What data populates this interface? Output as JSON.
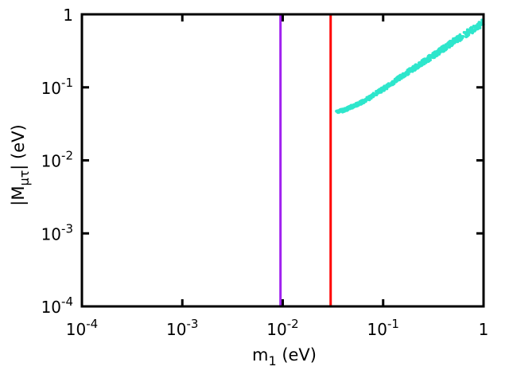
{
  "chart_data": {
    "type": "scatter",
    "title": "",
    "x_scale": "log",
    "y_scale": "log",
    "xlim": [
      0.0001,
      1
    ],
    "ylim": [
      0.0001,
      1
    ],
    "xlabel": {
      "base": "m",
      "sub": "1",
      "unit": " (eV)"
    },
    "ylabel": {
      "prefix": "|M",
      "sub": "μτ",
      "suffix": "| (eV)"
    },
    "x_ticks": [
      {
        "value": 0.0001,
        "base": "10",
        "exp": "-4"
      },
      {
        "value": 0.001,
        "base": "10",
        "exp": "-3"
      },
      {
        "value": 0.01,
        "base": "10",
        "exp": "-2"
      },
      {
        "value": 0.1,
        "base": "10",
        "exp": "-1"
      },
      {
        "value": 1,
        "base": "1",
        "exp": ""
      }
    ],
    "y_ticks": [
      {
        "value": 0.0001,
        "base": "10",
        "exp": "-4"
      },
      {
        "value": 0.001,
        "base": "10",
        "exp": "-3"
      },
      {
        "value": 0.01,
        "base": "10",
        "exp": "-2"
      },
      {
        "value": 0.1,
        "base": "10",
        "exp": "-1"
      },
      {
        "value": 1,
        "base": "1",
        "exp": ""
      }
    ],
    "grid": false,
    "vertical_lines": [
      {
        "x": 0.0095,
        "color": "#a020f0"
      },
      {
        "x": 0.03,
        "color": "#ff0000"
      }
    ],
    "series": [
      {
        "color": "#2ee6cc",
        "marker": "dot",
        "band": {
          "x_range": [
            0.034,
            1.0
          ],
          "points_xy": [
            [
              0.034,
              0.047
            ],
            [
              0.04,
              0.048
            ],
            [
              0.05,
              0.055
            ],
            [
              0.06,
              0.062
            ],
            [
              0.07,
              0.069
            ],
            [
              0.08,
              0.078
            ],
            [
              0.1,
              0.095
            ],
            [
              0.12,
              0.11
            ],
            [
              0.15,
              0.14
            ],
            [
              0.2,
              0.18
            ],
            [
              0.3,
              0.26
            ],
            [
              0.4,
              0.34
            ],
            [
              0.5,
              0.42
            ],
            [
              0.6,
              0.49
            ],
            [
              0.7,
              0.56
            ],
            [
              0.8,
              0.63
            ],
            [
              0.9,
              0.7
            ],
            [
              1.0,
              0.78
            ]
          ],
          "lower_ratio": 0.9,
          "upper_ratio": 1.12
        }
      }
    ]
  }
}
